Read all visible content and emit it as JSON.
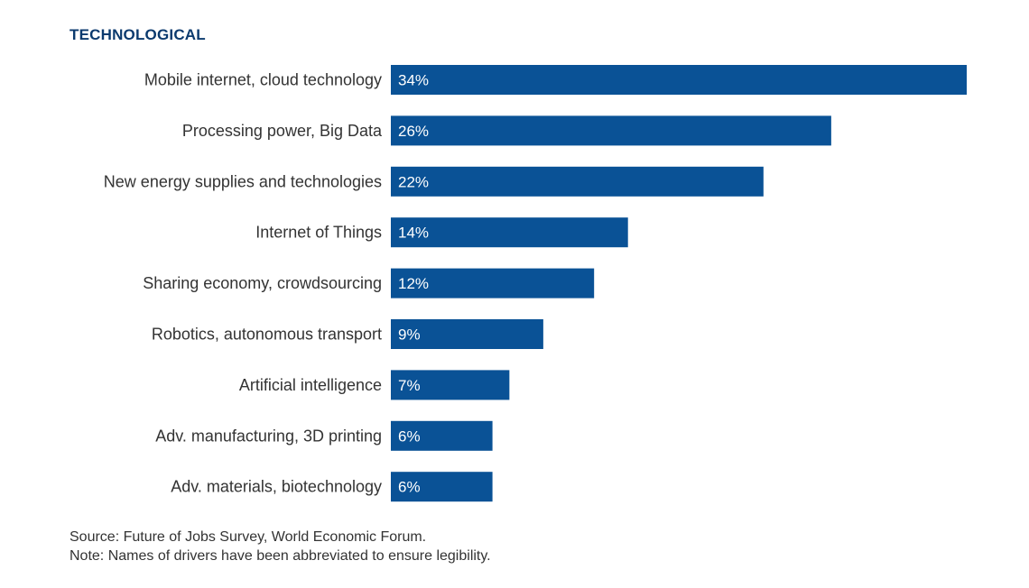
{
  "title": "TECHNOLOGICAL",
  "chart_data": {
    "type": "bar",
    "orientation": "horizontal",
    "categories": [
      "Mobile internet, cloud technology",
      "Processing power, Big Data",
      "New energy supplies and technologies",
      "Internet of Things",
      "Sharing economy, crowdsourcing",
      "Robotics, autonomous transport",
      "Artificial intelligence",
      "Adv. manufacturing, 3D printing",
      "Adv. materials, biotechnology"
    ],
    "values": [
      34,
      26,
      22,
      14,
      12,
      9,
      7,
      6,
      6
    ],
    "value_labels": [
      "34%",
      "26%",
      "22%",
      "14%",
      "12%",
      "9%",
      "7%",
      "6%",
      "6%"
    ],
    "title": "TECHNOLOGICAL",
    "xlabel": "",
    "ylabel": "",
    "xlim": [
      0,
      34
    ],
    "grid": false,
    "colors": {
      "bar": "#0a5296",
      "label": "#ffffff"
    }
  },
  "notes": {
    "source": "Source: Future of Jobs Survey, World Economic Forum.",
    "note": "Note: Names of drivers have been abbreviated to ensure legibility."
  }
}
